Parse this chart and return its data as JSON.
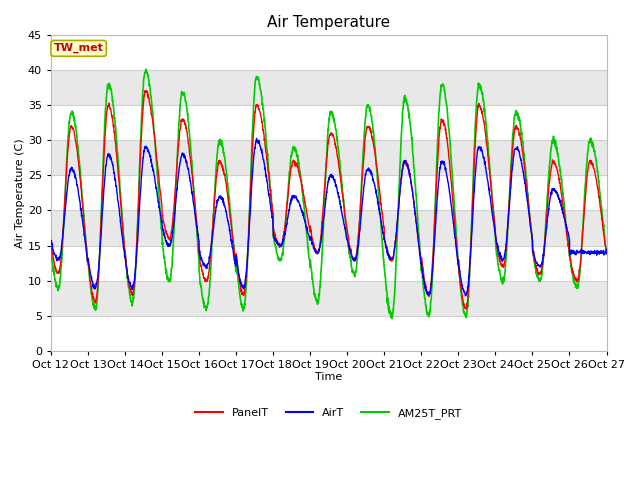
{
  "title": "Air Temperature",
  "xlabel": "Time",
  "ylabel": "Air Temperature (C)",
  "ylim": [
    0,
    45
  ],
  "xlim_start": 0,
  "xlim_end": 15,
  "xtick_labels": [
    "Oct 12",
    "Oct 13",
    "Oct 14",
    "Oct 15",
    "Oct 16",
    "Oct 17",
    "Oct 18",
    "Oct 19",
    "Oct 20",
    "Oct 21",
    "Oct 22",
    "Oct 23",
    "Oct 24",
    "Oct 25",
    "Oct 26",
    "Oct 27"
  ],
  "annotation_text": "TW_met",
  "annotation_bg": "#ffffcc",
  "annotation_border": "#aaaa00",
  "annotation_text_color": "#cc0000",
  "line_colors": {
    "PanelT": "#ff0000",
    "AirT": "#0000ff",
    "AM25T_PRT": "#00cc00"
  },
  "line_widths": {
    "PanelT": 1.0,
    "AirT": 1.0,
    "AM25T_PRT": 1.2
  },
  "fig_bg_color": "#ffffff",
  "plot_bg_color": "#ffffff",
  "band_color": "#e8e8e8",
  "grid_color": "#d0d0d0",
  "title_fontsize": 11,
  "axis_label_fontsize": 8,
  "tick_label_fontsize": 8,
  "legend_fontsize": 8,
  "day_peaks_panel": [
    32,
    35,
    37,
    33,
    27,
    35,
    27,
    31,
    32,
    27,
    33,
    35,
    32,
    27,
    27
  ],
  "day_troughs_panel": [
    11,
    7,
    8,
    16,
    10,
    8,
    15,
    14,
    13,
    13,
    8,
    6,
    12,
    11,
    10
  ],
  "day_peaks_air": [
    26,
    28,
    29,
    28,
    22,
    30,
    22,
    25,
    26,
    27,
    27,
    29,
    29,
    23,
    14
  ],
  "day_troughs_air": [
    13,
    9,
    9,
    15,
    12,
    9,
    15,
    14,
    13,
    13,
    8,
    8,
    13,
    12,
    14
  ],
  "day_peaks_green": [
    34,
    38,
    40,
    37,
    30,
    39,
    29,
    34,
    35,
    36,
    38,
    38,
    34,
    30,
    30
  ],
  "day_troughs_green": [
    9,
    6,
    7,
    10,
    6,
    6,
    13,
    7,
    11,
    5,
    5,
    5,
    10,
    10,
    9
  ]
}
